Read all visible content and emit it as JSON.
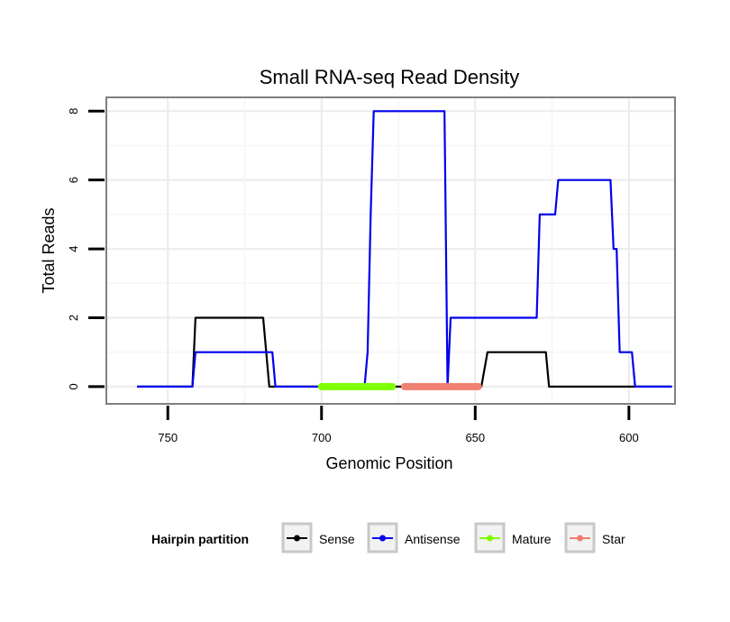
{
  "chart_data": {
    "type": "line",
    "title": "Small RNA-seq Read Density",
    "xlabel": "Genomic Position",
    "ylabel": "Total Reads",
    "xlim": [
      770,
      585
    ],
    "ylim": [
      -0.5,
      8.4
    ],
    "x_reversed": true,
    "x_ticks": [
      750,
      700,
      650,
      600
    ],
    "y_ticks": [
      0,
      2,
      4,
      6,
      8
    ],
    "grid": true,
    "legend": {
      "title": "Hairpin partition",
      "position": "bottom",
      "entries": [
        {
          "name": "Sense",
          "color": "#000000"
        },
        {
          "name": "Antisense",
          "color": "#0000ee"
        },
        {
          "name": "Mature",
          "color": "#7fff00"
        },
        {
          "name": "Star",
          "color": "#f08070"
        }
      ]
    },
    "series": [
      {
        "name": "Sense",
        "color": "#000000",
        "points": [
          [
            760,
            0
          ],
          [
            742,
            0
          ],
          [
            741,
            2
          ],
          [
            719,
            2
          ],
          [
            717,
            0
          ],
          [
            701,
            0
          ],
          [
            648,
            0
          ],
          [
            646,
            1
          ],
          [
            627,
            1
          ],
          [
            626,
            0
          ],
          [
            586,
            0
          ]
        ]
      },
      {
        "name": "Antisense",
        "color": "#0000ee",
        "points": [
          [
            760,
            0
          ],
          [
            742,
            0
          ],
          [
            741,
            1
          ],
          [
            716,
            1
          ],
          [
            715,
            0
          ],
          [
            686,
            0
          ],
          [
            685,
            1
          ],
          [
            684,
            5
          ],
          [
            683,
            8
          ],
          [
            660,
            8
          ],
          [
            659,
            0
          ],
          [
            658,
            2
          ],
          [
            630,
            2
          ],
          [
            629,
            5
          ],
          [
            624,
            5
          ],
          [
            623,
            6
          ],
          [
            606,
            6
          ],
          [
            605,
            4
          ],
          [
            604,
            4
          ],
          [
            603,
            1
          ],
          [
            599,
            1
          ],
          [
            598,
            0
          ],
          [
            586,
            0
          ]
        ]
      }
    ],
    "segments": [
      {
        "name": "Mature",
        "color": "#7fff00",
        "x_start": 700,
        "x_end": 677,
        "y": 0
      },
      {
        "name": "Star",
        "color": "#f08070",
        "x_start": 673,
        "x_end": 649,
        "y": 0
      }
    ]
  }
}
